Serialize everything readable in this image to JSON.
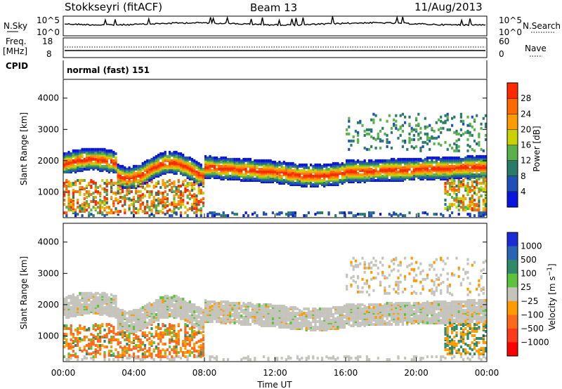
{
  "header": {
    "station": "Stokkseyri (fitACF)",
    "beam": "Beam 13",
    "date": "11/Aug/2013"
  },
  "top_strip": {
    "left_label": "N.Sky",
    "right_label": "N.Search",
    "left_ticks": [
      "10^5",
      "10^0"
    ],
    "right_ticks": [
      "10^5",
      "10^0"
    ]
  },
  "freq_strip": {
    "left_label_1": "Freq.",
    "left_label_2": "[MHz]",
    "left_ticks": [
      "18",
      "8"
    ],
    "right_label": "Nave",
    "right_ticks": [
      "60",
      "0"
    ]
  },
  "cpid": {
    "label": "CPID",
    "value": "normal (fast) 151"
  },
  "chart_data": [
    {
      "type": "heatmap",
      "panel": "power",
      "ylabel": "Slant Range [km]",
      "xlabel": "",
      "ylim": [
        180,
        4600
      ],
      "yticks": [
        "1000",
        "2000",
        "3000",
        "4000"
      ],
      "colorbar_label": "Power [dB]",
      "colorbar_ticks": [
        "4",
        "8",
        "12",
        "16",
        "20",
        "24",
        "28"
      ],
      "colorbar_colors": [
        "#0a14e0",
        "#1f4fb8",
        "#2a7a6a",
        "#5ab04a",
        "#c8d200",
        "#ff9a00",
        "#ff6a00",
        "#ff2a00"
      ],
      "features": [
        {
          "name": "main band",
          "x_hours": [
            0,
            24
          ],
          "range_km": [
            1500,
            2300
          ],
          "peak_db": 28
        },
        {
          "name": "near echoes",
          "x_hours": [
            0,
            8
          ],
          "range_km": [
            300,
            1400
          ],
          "peak_db": 28
        },
        {
          "name": "high band",
          "x_hours": [
            16,
            24
          ],
          "range_km": [
            2200,
            3500
          ],
          "peak_db": 12
        }
      ]
    },
    {
      "type": "heatmap",
      "panel": "velocity",
      "ylabel": "Slant Range [km]",
      "xlabel": "Time UT",
      "ylim": [
        180,
        4600
      ],
      "yticks": [
        "1000",
        "2000",
        "3000",
        "4000"
      ],
      "xticks": [
        "00:00",
        "04:00",
        "08:00",
        "12:00",
        "16:00",
        "20:00",
        "00:00"
      ],
      "colorbar_label": "Velocity [m s^-1]",
      "colorbar_ticks": [
        "1000",
        "500",
        "100",
        "25",
        "−25",
        "−100",
        "−500",
        "−1000"
      ],
      "colorbar_colors": [
        "#1a2cd8",
        "#2a64b4",
        "#2e8a6a",
        "#5ec23c",
        "#c4c4bc",
        "#ff9a00",
        "#ff6a1a",
        "#ff3a1a",
        "#ff0000"
      ],
      "features": [
        {
          "name": "ground scatter",
          "x_hours": [
            0,
            24
          ],
          "range_km": [
            1400,
            2300
          ],
          "velocity": "near zero"
        },
        {
          "name": "negative velocity echoes",
          "x_hours": [
            0,
            8
          ],
          "range_km": [
            300,
            1500
          ],
          "velocity": "-100 to -500"
        }
      ]
    }
  ]
}
